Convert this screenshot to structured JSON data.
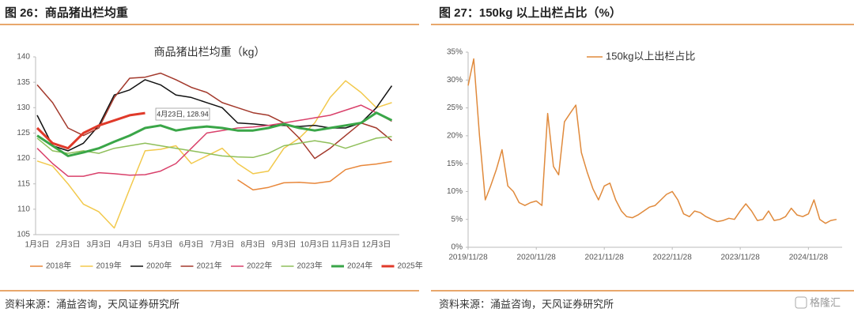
{
  "figures": [
    {
      "caption": "图 26：商品猪出栏均重",
      "source": "资料来源：涌益咨询，天风证券研究所"
    },
    {
      "caption": "图 27：150kg 以上出栏占比（%）",
      "source": "资料来源：涌益咨询，天风证券研究所"
    }
  ],
  "watermark": "格隆汇",
  "chart_data": [
    {
      "type": "line",
      "title": "商品猪出栏均重（kg）",
      "categories": [
        "1月3日",
        null,
        "2月3日",
        null,
        "3月3日",
        null,
        "4月3日",
        null,
        "5月3日",
        null,
        "6月3日",
        null,
        "7月3日",
        null,
        "8月3日",
        null,
        "9月3日",
        null,
        "10月3日",
        null,
        "11月3日",
        null,
        "12月3日",
        null
      ],
      "ylim": [
        105,
        140
      ],
      "yticks": [
        105,
        110,
        115,
        120,
        125,
        130,
        135,
        140
      ],
      "grid": false,
      "legend": "bottom",
      "annotations": [
        "4月23日, 128.94"
      ],
      "series": [
        {
          "name": "2018年",
          "color": "#e8873a",
          "width": 1.5,
          "values": [
            null,
            null,
            null,
            null,
            null,
            null,
            null,
            null,
            null,
            null,
            null,
            null,
            null,
            115.8,
            113.8,
            114.3,
            115.2,
            115.3,
            115.1,
            115.5,
            117.8,
            118.6,
            118.9,
            119.4
          ]
        },
        {
          "name": "2019年",
          "color": "#f2c94c",
          "width": 1.5,
          "values": [
            119.5,
            118.5,
            115,
            111,
            109.5,
            106.3,
            114,
            121.5,
            121.8,
            122.5,
            119,
            120.5,
            122,
            119,
            117,
            117.5,
            122,
            124,
            127,
            132,
            135.3,
            133,
            130,
            131
          ]
        },
        {
          "name": "2020年",
          "color": "#111111",
          "width": 1.5,
          "values": [
            128.5,
            122.5,
            121.5,
            123,
            126.5,
            132.5,
            133.5,
            135.5,
            134.5,
            132.5,
            132,
            131,
            130,
            127,
            126.8,
            126.5,
            126.5,
            126.3,
            126.5,
            126,
            126,
            127,
            130,
            134.3
          ]
        },
        {
          "name": "2021年",
          "color": "#a3392c",
          "width": 1.5,
          "values": [
            134.5,
            131,
            126,
            124.5,
            126,
            132,
            135.8,
            136,
            136.8,
            135.5,
            134,
            133,
            131,
            130,
            129,
            128.5,
            127,
            124,
            120,
            122,
            124.5,
            127,
            126,
            123.5
          ]
        },
        {
          "name": "2022年",
          "color": "#d9416b",
          "width": 1.5,
          "values": [
            122,
            119,
            116.5,
            116.5,
            117.2,
            117,
            116.7,
            116.8,
            117.5,
            119,
            122,
            125,
            125.5,
            126,
            126.2,
            126.5,
            127,
            127.5,
            128,
            128.5,
            129.5,
            130.5,
            129,
            127.3
          ]
        },
        {
          "name": "2023年",
          "color": "#8fbf5a",
          "width": 1.5,
          "values": [
            124,
            121.5,
            121,
            121.5,
            121,
            122,
            122.5,
            123,
            122.5,
            122,
            121.5,
            121,
            120.5,
            120.3,
            120.2,
            121,
            122.5,
            123,
            123.5,
            123,
            122,
            123,
            124,
            124.3
          ]
        },
        {
          "name": "2024年",
          "color": "#3aa648",
          "width": 3,
          "values": [
            124.5,
            122.5,
            120.5,
            121.2,
            122,
            123.3,
            124.5,
            126,
            126.5,
            125.5,
            126,
            126.3,
            126,
            125.5,
            125.5,
            126,
            126.8,
            126,
            125.5,
            126,
            126.5,
            127,
            129,
            127.5
          ]
        },
        {
          "name": "2025年",
          "color": "#e03a2a",
          "width": 3,
          "values": [
            126,
            123,
            122,
            125,
            126.5,
            127.5,
            128.5,
            128.94,
            null,
            null,
            null,
            null,
            null,
            null,
            null,
            null,
            null,
            null,
            null,
            null,
            null,
            null,
            null,
            null
          ]
        }
      ]
    },
    {
      "type": "line",
      "legend": "top",
      "x": [
        "2019/11/28",
        "2019/12/28",
        "2020/01/28",
        "2020/02/28",
        "2020/03/28",
        "2020/04/28",
        "2020/05/28",
        "2020/06/28",
        "2020/07/28",
        "2020/08/28",
        "2020/09/28",
        "2020/10/28",
        "2020/11/28",
        "2020/12/28",
        "2021/01/28",
        "2021/02/28",
        "2021/03/28",
        "2021/04/28",
        "2021/05/28",
        "2021/06/28",
        "2021/07/28",
        "2021/08/28",
        "2021/09/28",
        "2021/10/28",
        "2021/11/28",
        "2021/12/28",
        "2022/01/28",
        "2022/02/28",
        "2022/03/28",
        "2022/04/28",
        "2022/05/28",
        "2022/06/28",
        "2022/07/28",
        "2022/08/28",
        "2022/09/28",
        "2022/10/28",
        "2022/11/28",
        "2022/12/28",
        "2023/01/28",
        "2023/02/28",
        "2023/03/28",
        "2023/04/28",
        "2023/05/28",
        "2023/06/28",
        "2023/07/28",
        "2023/08/28",
        "2023/09/28",
        "2023/10/28",
        "2023/11/28",
        "2023/12/28",
        "2024/01/28",
        "2024/02/28",
        "2024/03/28",
        "2024/04/28",
        "2024/05/28",
        "2024/06/28",
        "2024/07/28",
        "2024/08/28",
        "2024/09/28",
        "2024/10/28",
        "2024/11/28",
        "2024/12/28",
        "2025/01/28",
        "2025/02/28",
        "2025/03/28",
        "2025/04/28"
      ],
      "xlim": [
        "2019/11/28",
        "2025/05/28"
      ],
      "xticks": [
        "2019/11/28",
        "2020/11/28",
        "2021/11/28",
        "2022/11/28",
        "2023/11/28",
        "2024/11/28"
      ],
      "ylim": [
        0,
        35
      ],
      "yticks": [
        {
          "value": 0,
          "label": "0%"
        },
        {
          "value": 5,
          "label": "5%"
        },
        {
          "value": 10,
          "label": "10%"
        },
        {
          "value": 15,
          "label": "15%"
        },
        {
          "value": 20,
          "label": "20%"
        },
        {
          "value": 25,
          "label": "25%"
        },
        {
          "value": 30,
          "label": "30%"
        },
        {
          "value": 35,
          "label": "35%"
        }
      ],
      "grid": false,
      "series": [
        {
          "name": "150kg以上出栏占比",
          "color": "#e08a3c",
          "width": 1.5,
          "values": [
            29,
            33.8,
            20,
            8.5,
            11,
            14,
            17.5,
            11,
            10,
            8,
            7.5,
            8,
            8.3,
            7.5,
            24,
            14.5,
            13,
            22.5,
            24,
            25.5,
            17,
            13.5,
            10.5,
            8.5,
            11,
            11.5,
            8.5,
            6.5,
            5.5,
            5.3,
            5.8,
            6.5,
            7.2,
            7.5,
            8.5,
            9.5,
            10,
            8.5,
            6,
            5.5,
            6.5,
            6.2,
            5.5,
            5,
            4.6,
            4.8,
            5.2,
            5,
            6.5,
            7.8,
            6.5,
            4.8,
            5,
            6.5,
            4.8,
            5,
            5.5,
            7,
            5.8,
            5.5,
            6,
            8.5,
            5,
            4.3,
            4.8,
            5
          ]
        }
      ]
    }
  ]
}
